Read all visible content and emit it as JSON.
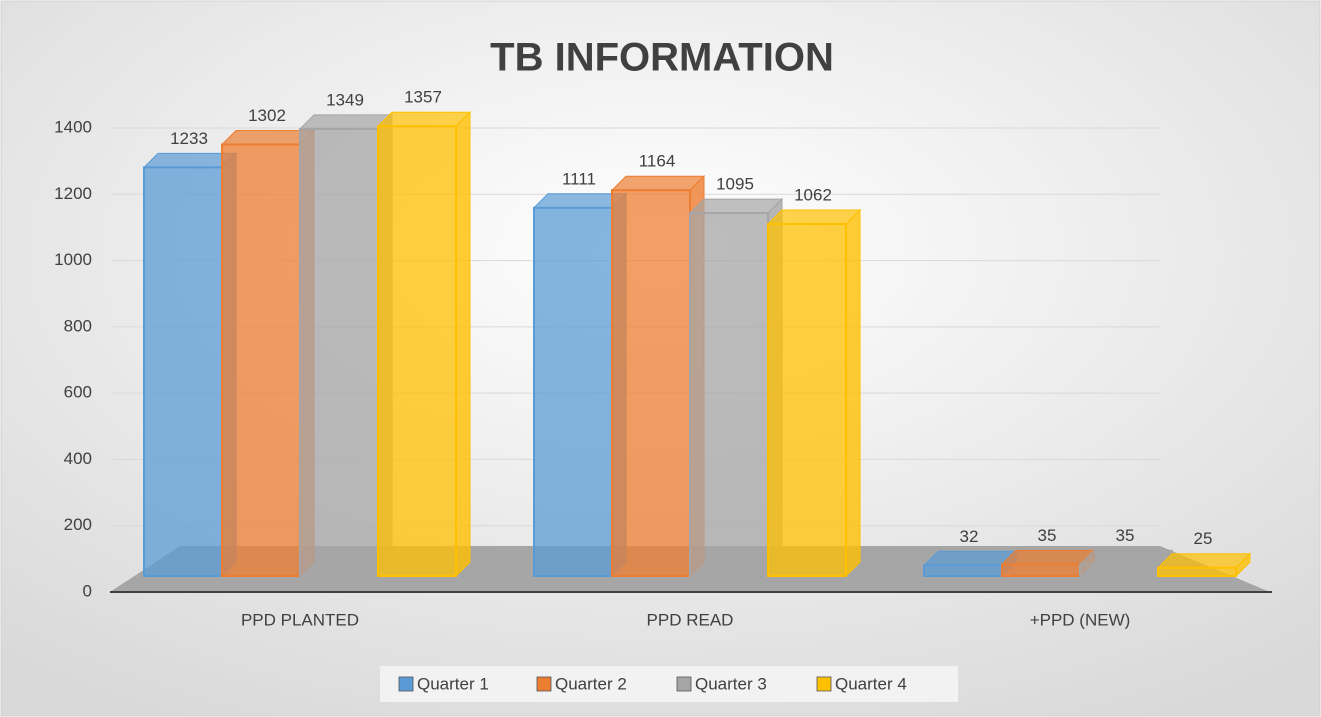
{
  "chart_data": {
    "type": "bar",
    "title": "TB INFORMATION",
    "categories": [
      "PPD PLANTED",
      "PPD READ",
      "+PPD (NEW)"
    ],
    "series": [
      {
        "name": "Quarter 1",
        "color": "#5b9bd5",
        "values": [
          1233,
          1111,
          32
        ]
      },
      {
        "name": "Quarter 2",
        "color": "#ed7d31",
        "values": [
          1302,
          1164,
          35
        ]
      },
      {
        "name": "Quarter 3",
        "color": "#a5a5a5",
        "values": [
          1349,
          1095,
          35
        ]
      },
      {
        "name": "Quarter 4",
        "color": "#ffc000",
        "values": [
          1357,
          1062,
          25
        ]
      }
    ],
    "ylim": [
      0,
      1400
    ],
    "yticks": [
      0,
      200,
      400,
      600,
      800,
      1000,
      1200,
      1400
    ],
    "grid": true,
    "legend": "bottom"
  }
}
